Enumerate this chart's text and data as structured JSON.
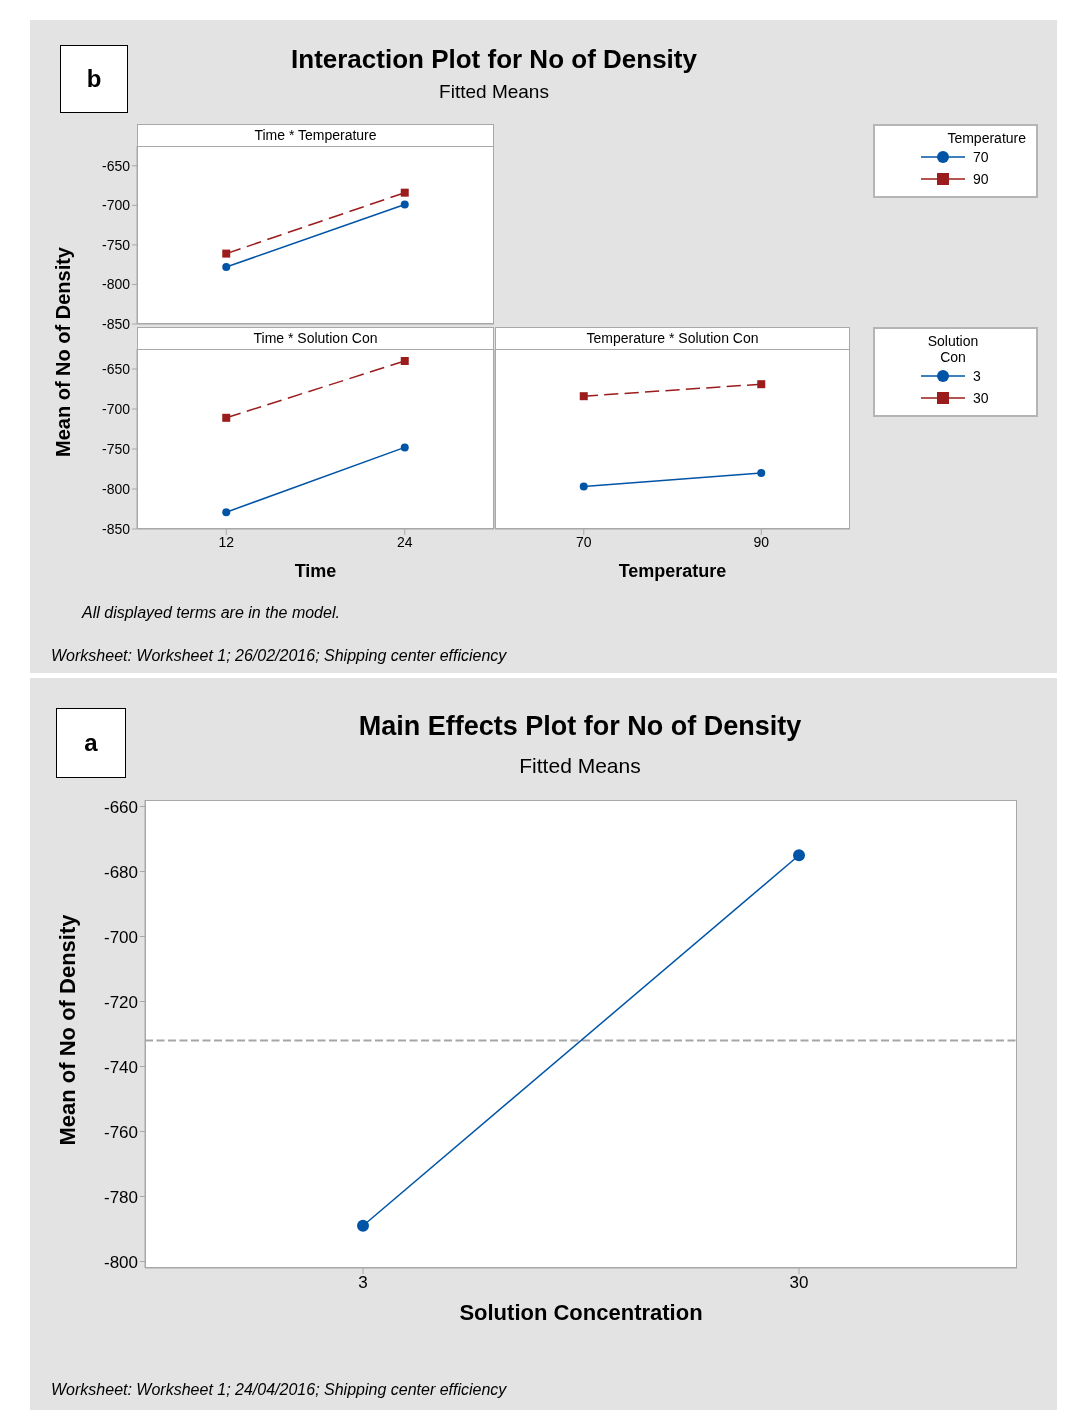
{
  "chart_data": [
    {
      "type": "line",
      "title": "Time * Temperature",
      "ylabel": "Mean of No of Density",
      "categories": [
        "12",
        "24"
      ],
      "ylim": [
        -850,
        -625
      ],
      "yticks": [
        -850,
        -800,
        -750,
        -700,
        -650
      ],
      "tick_labels": "y",
      "legend": "right",
      "legend_title": "Temperature",
      "grid": false,
      "series": [
        {
          "name": "70",
          "color": "#0054a6",
          "marker": "circle",
          "line_style": "solid",
          "values": [
            -778,
            -699
          ]
        },
        {
          "name": "90",
          "color": "#9b1c1c",
          "marker": "square",
          "line_style": "dashed",
          "values": [
            -761,
            -684
          ]
        }
      ],
      "annotations": [
        "b",
        "Interaction Plot for No of Density",
        "Fitted Means",
        "All displayed terms are in the model.",
        "Worksheet: Worksheet 1; 26/02/2016; Shipping center efficiency"
      ]
    },
    {
      "type": "line",
      "title": "Time * Solution Con",
      "xlabel": "Time",
      "categories": [
        "12",
        "24"
      ],
      "ylim": [
        -850,
        -625
      ],
      "yticks": [
        -850,
        -800,
        -750,
        -700,
        -650
      ],
      "grid": false,
      "series": [
        {
          "color": "#0054a6",
          "marker": "circle",
          "line_style": "solid",
          "values": [
            -829,
            -748
          ]
        },
        {
          "color": "#9b1c1c",
          "marker": "square",
          "line_style": "dashed",
          "values": [
            -711,
            -640
          ]
        }
      ]
    },
    {
      "type": "line",
      "title": "Temperature * Solution Con",
      "xlabel": "Temperature",
      "categories": [
        "70",
        "90"
      ],
      "ylim": [
        -850,
        -625
      ],
      "tick_labels": "x",
      "legend": "right",
      "legend_title": "Solution Con",
      "grid": false,
      "series": [
        {
          "name": "3",
          "color": "#0054a6",
          "marker": "circle",
          "line_style": "solid",
          "values": [
            -797,
            -780
          ]
        },
        {
          "name": "30",
          "color": "#9b1c1c",
          "marker": "square",
          "line_style": "dashed",
          "values": [
            -684,
            -669
          ]
        }
      ]
    },
    {
      "type": "line",
      "title": "Main Effects Plot for No of Density",
      "subtitle": "Fitted Means",
      "xlabel": "Solution Concentration",
      "ylabel": "Mean of No of Density",
      "categories": [
        "3",
        "30"
      ],
      "ylim": [
        -802,
        -658
      ],
      "yticks": [
        -800,
        -780,
        -760,
        -740,
        -720,
        -700,
        -680,
        -660
      ],
      "grid": false,
      "legend": false,
      "series": [
        {
          "color": "#0054a6",
          "marker": "circle",
          "line_style": "solid",
          "values": [
            -789,
            -675
          ]
        }
      ],
      "ref_lines": [
        {
          "axis": "y",
          "value": -732,
          "color": "#a6a6a6",
          "line_style": "dashed"
        }
      ],
      "annotations": [
        "a",
        "Worksheet: Worksheet 1; 24/04/2016; Shipping center efficiency"
      ]
    }
  ]
}
